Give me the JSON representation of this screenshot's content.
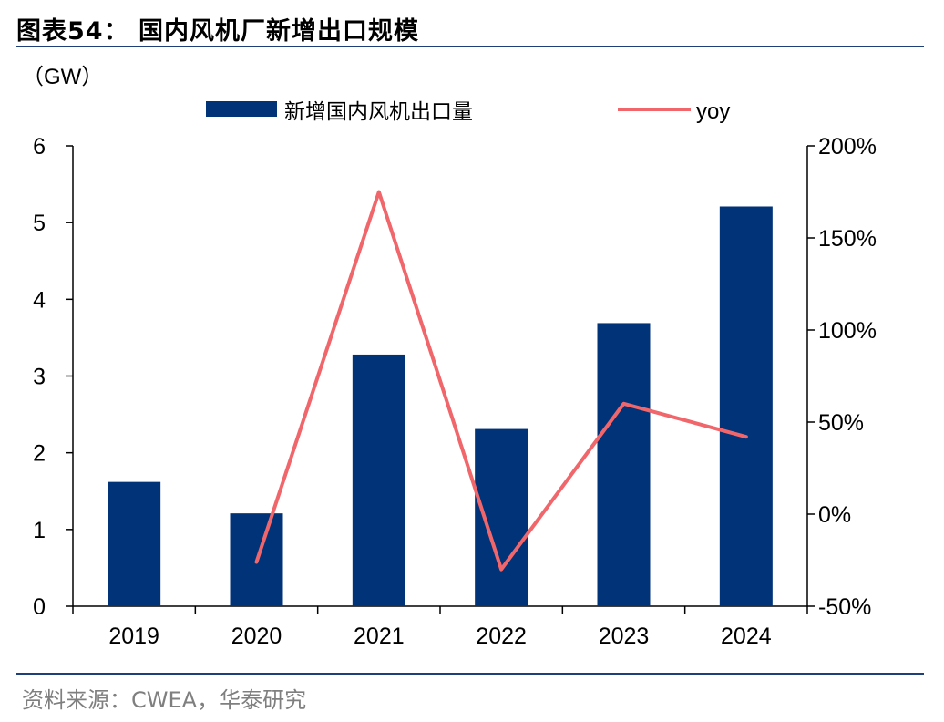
{
  "header": {
    "title": "图表54：  国内风机厂新增出口规模",
    "source": "资料来源：CWEA，华泰研究"
  },
  "chart_data": {
    "type": "bar",
    "categories": [
      "2019",
      "2020",
      "2021",
      "2022",
      "2023",
      "2024"
    ],
    "left_axis": {
      "unit_label": "（GW）",
      "ylim": [
        0,
        6
      ],
      "ticks": [
        "0",
        "1",
        "2",
        "3",
        "4",
        "5",
        "6"
      ]
    },
    "right_axis": {
      "ylim": [
        -50,
        200
      ],
      "ticks": [
        "-50%",
        "0%",
        "50%",
        "100%",
        "150%",
        "200%"
      ]
    },
    "series": [
      {
        "name": "新增国内风机出口量",
        "type": "bar",
        "axis": "left",
        "color": "#003378",
        "values": [
          1.62,
          1.21,
          3.28,
          2.31,
          3.69,
          5.21
        ]
      },
      {
        "name": "yoy",
        "type": "line",
        "axis": "right",
        "color": "#f0666a",
        "values": [
          null,
          -26,
          175,
          -30,
          60,
          42
        ]
      }
    ],
    "legend": "top",
    "grid": false
  }
}
